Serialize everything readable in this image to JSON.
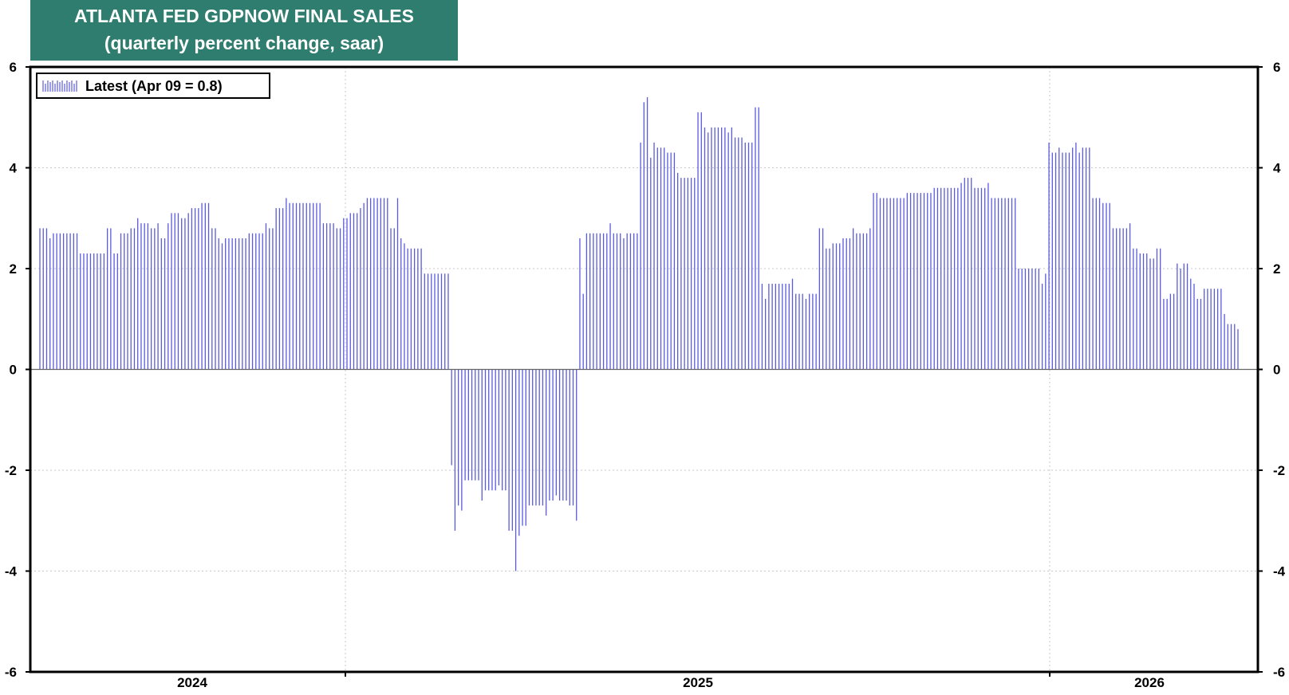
{
  "chart_data": {
    "type": "bar",
    "title": "ATLANTA FED GDPNOW FINAL SALES",
    "subtitle": "(quarterly percent change, saar)",
    "xlabel": "",
    "ylabel": "",
    "ylim": [
      -6,
      6
    ],
    "yticks": [
      "6",
      "4",
      "2",
      "0",
      "-2",
      "-4",
      "-6"
    ],
    "xticks": [
      "2024",
      "2025",
      "2026"
    ],
    "grid": true,
    "legend_position": "top-left",
    "bar_color": "#5a5adc",
    "series": [
      {
        "name": "Latest (Apr 09 = 0.8)",
        "values": [
          2.8,
          2.8,
          2.8,
          2.6,
          2.7,
          2.7,
          2.7,
          2.7,
          2.7,
          2.7,
          2.7,
          2.7,
          2.3,
          2.3,
          2.3,
          2.3,
          2.3,
          2.3,
          2.3,
          2.3,
          2.8,
          2.8,
          2.3,
          2.3,
          2.7,
          2.7,
          2.7,
          2.8,
          2.8,
          3.0,
          2.9,
          2.9,
          2.9,
          2.8,
          2.8,
          2.9,
          2.6,
          2.6,
          2.9,
          3.1,
          3.1,
          3.1,
          3.0,
          3.0,
          3.1,
          3.2,
          3.2,
          3.2,
          3.3,
          3.3,
          3.3,
          2.8,
          2.8,
          2.6,
          2.5,
          2.6,
          2.6,
          2.6,
          2.6,
          2.6,
          2.6,
          2.6,
          2.7,
          2.7,
          2.7,
          2.7,
          2.7,
          2.9,
          2.8,
          2.8,
          3.2,
          3.2,
          3.2,
          3.4,
          3.3,
          3.3,
          3.3,
          3.3,
          3.3,
          3.3,
          3.3,
          3.3,
          3.3,
          3.3,
          2.9,
          2.9,
          2.9,
          2.9,
          2.8,
          2.8,
          3.0,
          3.0,
          3.1,
          3.1,
          3.1,
          3.2,
          3.3,
          3.4,
          3.4,
          3.4,
          3.4,
          3.4,
          3.4,
          3.4,
          2.8,
          2.8,
          3.4,
          2.6,
          2.5,
          2.4,
          2.4,
          2.4,
          2.4,
          2.4,
          1.9,
          1.9,
          1.9,
          1.9,
          1.9,
          1.9,
          1.9,
          1.9,
          -1.9,
          -3.2,
          -2.7,
          -2.8,
          -2.2,
          -2.2,
          -2.2,
          -2.2,
          -2.2,
          -2.6,
          -2.4,
          -2.4,
          -2.4,
          -2.4,
          -2.3,
          -2.4,
          -2.4,
          -3.2,
          -3.2,
          -4.0,
          -3.3,
          -3.1,
          -3.1,
          -2.7,
          -2.7,
          -2.7,
          -2.7,
          -2.7,
          -2.9,
          -2.6,
          -2.6,
          -2.5,
          -2.6,
          -2.6,
          -2.6,
          -2.7,
          -2.7,
          -3.0,
          2.6,
          1.5,
          2.7,
          2.7,
          2.7,
          2.7,
          2.7,
          2.7,
          2.7,
          2.9,
          2.7,
          2.7,
          2.7,
          2.6,
          2.7,
          2.7,
          2.7,
          2.7,
          4.5,
          5.3,
          5.4,
          4.2,
          4.5,
          4.4,
          4.4,
          4.4,
          4.3,
          4.3,
          4.3,
          3.9,
          3.8,
          3.8,
          3.8,
          3.8,
          3.8,
          5.1,
          5.1,
          4.8,
          4.7,
          4.8,
          4.8,
          4.8,
          4.8,
          4.8,
          4.7,
          4.8,
          4.6,
          4.6,
          4.6,
          4.5,
          4.5,
          4.5,
          5.2,
          5.2,
          1.7,
          1.4,
          1.7,
          1.7,
          1.7,
          1.7,
          1.7,
          1.7,
          1.7,
          1.8,
          1.5,
          1.5,
          1.5,
          1.4,
          1.5,
          1.5,
          1.5,
          2.8,
          2.8,
          2.4,
          2.4,
          2.5,
          2.5,
          2.5,
          2.6,
          2.6,
          2.6,
          2.8,
          2.7,
          2.7,
          2.7,
          2.7,
          2.8,
          3.5,
          3.5,
          3.4,
          3.4,
          3.4,
          3.4,
          3.4,
          3.4,
          3.4,
          3.4,
          3.5,
          3.5,
          3.5,
          3.5,
          3.5,
          3.5,
          3.5,
          3.5,
          3.6,
          3.6,
          3.6,
          3.6,
          3.6,
          3.6,
          3.6,
          3.6,
          3.7,
          3.8,
          3.8,
          3.8,
          3.6,
          3.6,
          3.6,
          3.6,
          3.7,
          3.4,
          3.4,
          3.4,
          3.4,
          3.4,
          3.4,
          3.4,
          3.4,
          2.0,
          2.0,
          2.0,
          2.0,
          2.0,
          2.0,
          2.0,
          1.7,
          1.9,
          4.5,
          4.3,
          4.3,
          4.4,
          4.3,
          4.3,
          4.3,
          4.4,
          4.5,
          4.3,
          4.4,
          4.4,
          4.4,
          3.4,
          3.4,
          3.4,
          3.3,
          3.3,
          3.3,
          2.8,
          2.8,
          2.8,
          2.8,
          2.8,
          2.9,
          2.4,
          2.4,
          2.3,
          2.3,
          2.3,
          2.2,
          2.2,
          2.4,
          2.4,
          1.4,
          1.4,
          1.5,
          1.5,
          2.1,
          2.0,
          2.1,
          2.1,
          1.8,
          1.7,
          1.4,
          1.4,
          1.6,
          1.6,
          1.6,
          1.6,
          1.6,
          1.6,
          1.1,
          0.9,
          0.9,
          0.9,
          0.8
        ]
      }
    ]
  }
}
